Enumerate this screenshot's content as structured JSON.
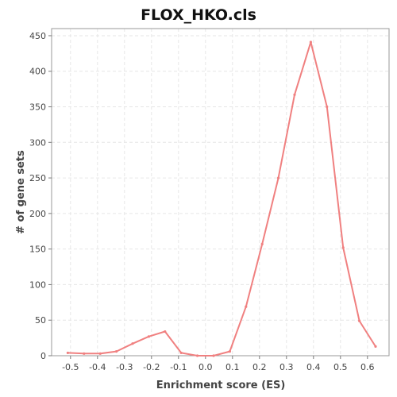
{
  "chart_data": {
    "type": "line",
    "title": "FLOX_HKO.cls",
    "xlabel": "Enrichment score (ES)",
    "ylabel": "# of gene sets",
    "xlim": [
      -0.57,
      0.68
    ],
    "ylim": [
      0,
      460
    ],
    "x_ticks": [
      -0.5,
      -0.4,
      -0.3,
      -0.2,
      -0.1,
      0.0,
      0.1,
      0.2,
      0.3,
      0.4,
      0.5,
      0.6
    ],
    "x_tick_labels": [
      "-0.5",
      "-0.4",
      "-0.3",
      "-0.2",
      "-0.1",
      "0.0",
      "0.1",
      "0.2",
      "0.3",
      "0.4",
      "0.5",
      "0.6"
    ],
    "y_ticks": [
      0,
      50,
      100,
      150,
      200,
      250,
      300,
      350,
      400,
      450
    ],
    "y_tick_labels": [
      "0",
      "50",
      "100",
      "150",
      "200",
      "250",
      "300",
      "350",
      "400",
      "450"
    ],
    "grid": true,
    "legend": "none",
    "series": [
      {
        "color": "#f08080",
        "x": [
          -0.51,
          -0.45,
          -0.39,
          -0.33,
          -0.27,
          -0.21,
          -0.15,
          -0.09,
          -0.03,
          0.03,
          0.09,
          0.15,
          0.21,
          0.27,
          0.33,
          0.39,
          0.45,
          0.51,
          0.57,
          0.63
        ],
        "y": [
          4,
          3,
          3,
          6,
          17,
          27,
          34,
          4,
          0,
          0,
          6,
          69,
          157,
          250,
          367,
          441,
          350,
          152,
          49,
          13
        ]
      }
    ]
  }
}
